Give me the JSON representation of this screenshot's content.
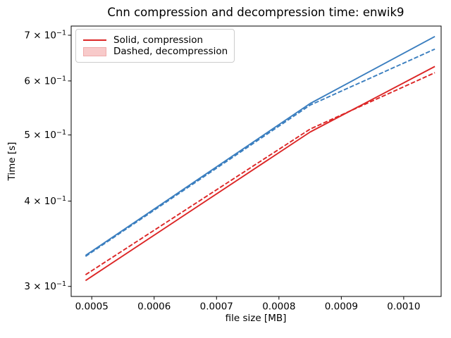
{
  "chart_data": {
    "type": "line",
    "title": "Cnn compression and decompression time: enwik9",
    "xlabel": "file size [MB]",
    "ylabel": "Time [s]",
    "x_scale": "linear",
    "y_scale": "log",
    "xlim": [
      0.000467,
      0.00106
    ],
    "ylim": [
      0.29,
      0.722
    ],
    "grid": false,
    "x": [
      0.00049,
      0.00085,
      0.00105
    ],
    "series": [
      {
        "id": "blue-solid",
        "name": "compression (blue, solid)",
        "style": "solid",
        "color": "#3a7ebf",
        "values": [
          0.333,
          0.556,
          0.697
        ]
      },
      {
        "id": "blue-dashed",
        "name": "decompression (blue, dashed)",
        "style": "dashed",
        "color": "#3a7ebf",
        "values": [
          0.332,
          0.553,
          0.668
        ]
      },
      {
        "id": "red-solid",
        "name": "compression (red, solid)",
        "style": "solid",
        "color": "#dc2626",
        "values": [
          0.306,
          0.505,
          0.63
        ]
      },
      {
        "id": "red-dashed",
        "name": "decompression (red, dashed)",
        "style": "dashed",
        "color": "#dc2626",
        "values": [
          0.312,
          0.51,
          0.617
        ]
      }
    ],
    "x_ticks": {
      "values": [
        0.0005,
        0.0006,
        0.0007,
        0.0008,
        0.0009,
        0.001
      ],
      "labels": [
        "0.0005",
        "0.0006",
        "0.0007",
        "0.0008",
        "0.0009",
        "0.0010"
      ]
    },
    "y_ticks": {
      "values": [
        0.3,
        0.4,
        0.5,
        0.6,
        0.7
      ],
      "labels": [
        {
          "base": "3 × 10",
          "exp": "−1"
        },
        {
          "base": "4 × 10",
          "exp": "−1"
        },
        {
          "base": "5 × 10",
          "exp": "−1"
        },
        {
          "base": "6 × 10",
          "exp": "−1"
        },
        {
          "base": "7 × 10",
          "exp": "−1"
        }
      ]
    },
    "legend": {
      "position": "upper left",
      "entries": [
        {
          "swatch": "line",
          "color": "#dc2626",
          "label": "Solid, compression"
        },
        {
          "swatch": "patch",
          "fill": "#f8caca",
          "edge": "#efabab",
          "label": "Dashed, decompression"
        }
      ]
    }
  }
}
